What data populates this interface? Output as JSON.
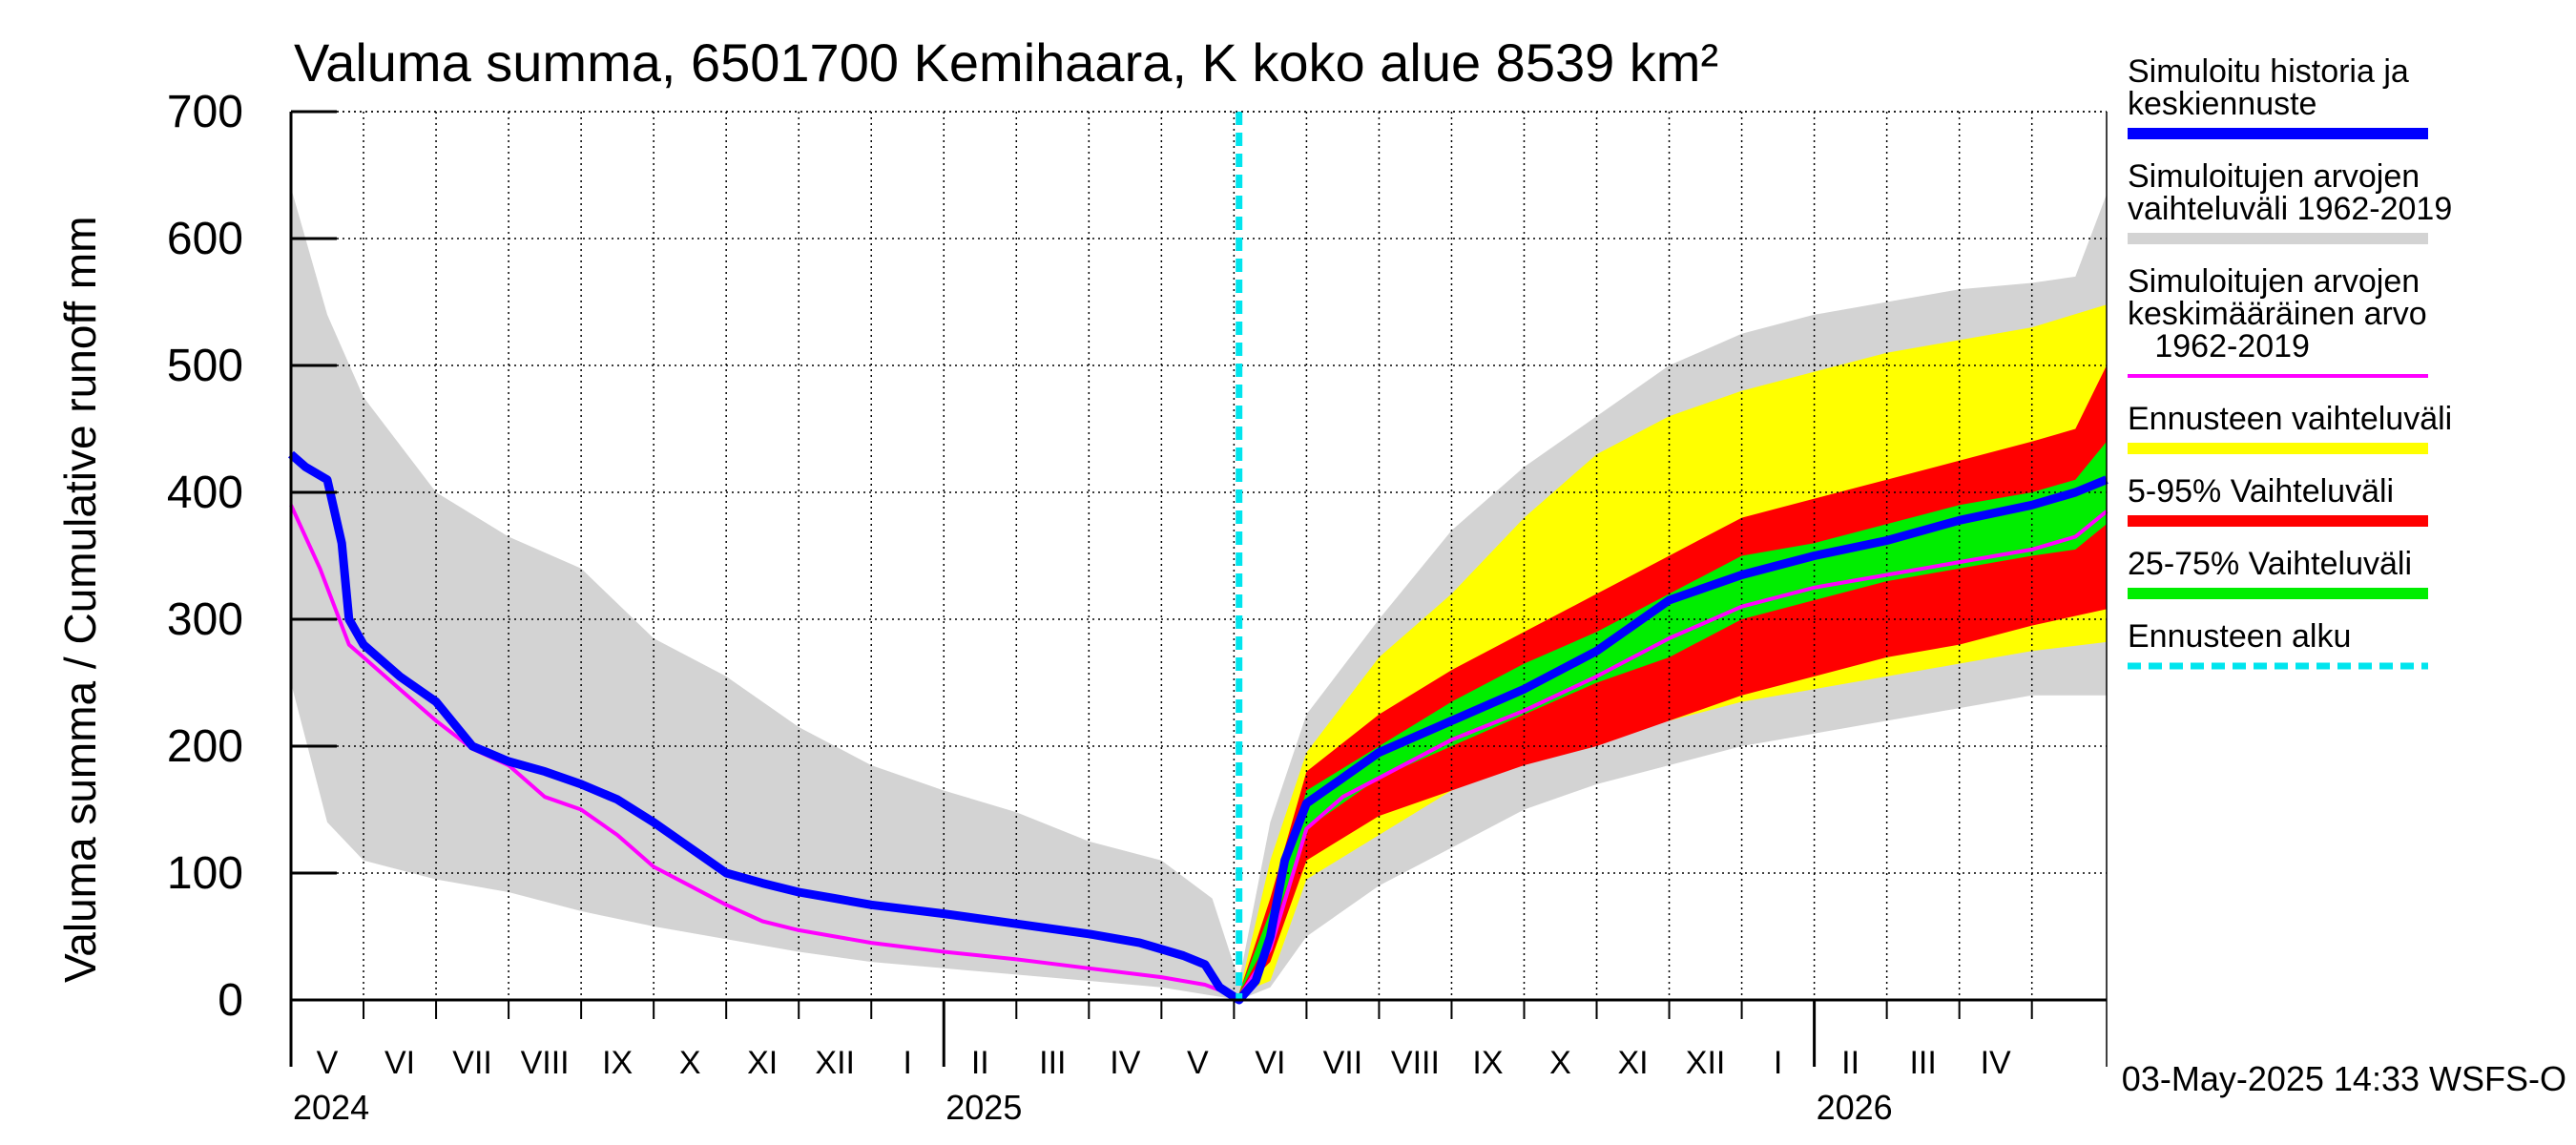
{
  "chart_data": {
    "type": "area",
    "title": "Valuma summa, 6501700 Kemihaara, K koko alue 8539 km²",
    "ylabel": "Valuma summa / Cumulative runoff    mm",
    "xlabel": "",
    "ylim": [
      0,
      700
    ],
    "yticks": [
      0,
      100,
      200,
      300,
      400,
      500,
      600,
      700
    ],
    "x_unit": "months since 2024-04-01",
    "xlim": [
      0,
      25.03
    ],
    "forecast_start": 13.07,
    "month_labels": [
      "V",
      "VI",
      "VII",
      "VIII",
      "IX",
      "X",
      "XI",
      "XII",
      "I",
      "II",
      "III",
      "IV",
      "V",
      "VI",
      "VII",
      "VIII",
      "IX",
      "X",
      "XI",
      "XII",
      "I",
      "II",
      "III",
      "IV"
    ],
    "year_labels": [
      {
        "x": 0,
        "label": "2024"
      },
      {
        "x": 9,
        "label": "2025"
      },
      {
        "x": 21,
        "label": "2026"
      }
    ],
    "grid": true,
    "series": [
      {
        "name": "Simuloitujen arvojen vaihteluväli 1962-2019",
        "color": "#d3d3d3",
        "upper": [
          [
            0,
            640
          ],
          [
            0.5,
            540
          ],
          [
            1,
            475
          ],
          [
            2,
            400
          ],
          [
            3,
            365
          ],
          [
            4,
            340
          ],
          [
            5,
            285
          ],
          [
            6,
            255
          ],
          [
            7,
            215
          ],
          [
            8,
            185
          ],
          [
            9,
            165
          ],
          [
            10,
            148
          ],
          [
            11,
            125
          ],
          [
            12,
            110
          ],
          [
            12.7,
            80
          ],
          [
            13.07,
            15
          ],
          [
            13.5,
            140
          ],
          [
            14,
            225
          ],
          [
            15,
            300
          ],
          [
            16,
            370
          ],
          [
            17,
            420
          ],
          [
            18,
            460
          ],
          [
            19,
            500
          ],
          [
            20,
            525
          ],
          [
            21,
            540
          ],
          [
            22,
            550
          ],
          [
            23,
            560
          ],
          [
            24,
            565
          ],
          [
            24.6,
            570
          ],
          [
            25.03,
            635
          ]
        ],
        "lower": [
          [
            0,
            250
          ],
          [
            0.5,
            140
          ],
          [
            1,
            110
          ],
          [
            2,
            95
          ],
          [
            3,
            85
          ],
          [
            4,
            70
          ],
          [
            5,
            58
          ],
          [
            6,
            48
          ],
          [
            7,
            38
          ],
          [
            8,
            30
          ],
          [
            9,
            25
          ],
          [
            10,
            20
          ],
          [
            11,
            15
          ],
          [
            12,
            10
          ],
          [
            13.07,
            0
          ],
          [
            13.5,
            10
          ],
          [
            14,
            50
          ],
          [
            15,
            90
          ],
          [
            16,
            120
          ],
          [
            17,
            150
          ],
          [
            18,
            170
          ],
          [
            19,
            185
          ],
          [
            20,
            200
          ],
          [
            21,
            210
          ],
          [
            22,
            220
          ],
          [
            23,
            230
          ],
          [
            24,
            240
          ],
          [
            25.03,
            240
          ]
        ]
      },
      {
        "name": "Ennusteen vaihteluväli",
        "color": "#ffff00",
        "upper": [
          [
            13.07,
            5
          ],
          [
            13.5,
            110
          ],
          [
            14,
            195
          ],
          [
            15,
            270
          ],
          [
            16,
            320
          ],
          [
            17,
            380
          ],
          [
            18,
            430
          ],
          [
            19,
            460
          ],
          [
            20,
            480
          ],
          [
            21,
            495
          ],
          [
            22,
            510
          ],
          [
            23,
            520
          ],
          [
            24,
            530
          ],
          [
            25.03,
            548
          ]
        ],
        "lower": [
          [
            13.07,
            5
          ],
          [
            13.5,
            15
          ],
          [
            14,
            95
          ],
          [
            15,
            130
          ],
          [
            16,
            165
          ],
          [
            17,
            190
          ],
          [
            18,
            205
          ],
          [
            19,
            220
          ],
          [
            20,
            235
          ],
          [
            21,
            245
          ],
          [
            22,
            255
          ],
          [
            23,
            265
          ],
          [
            24,
            275
          ],
          [
            25.03,
            282
          ]
        ]
      },
      {
        "name": "5-95% Vaihteluväli",
        "color": "#ff0000",
        "upper": [
          [
            13.07,
            5
          ],
          [
            13.5,
            80
          ],
          [
            14,
            180
          ],
          [
            15,
            225
          ],
          [
            16,
            260
          ],
          [
            17,
            290
          ],
          [
            18,
            320
          ],
          [
            19,
            350
          ],
          [
            20,
            380
          ],
          [
            21,
            395
          ],
          [
            22,
            410
          ],
          [
            23,
            425
          ],
          [
            24,
            440
          ],
          [
            24.6,
            450
          ],
          [
            25.03,
            500
          ]
        ],
        "lower": [
          [
            13.07,
            5
          ],
          [
            13.5,
            30
          ],
          [
            14,
            110
          ],
          [
            15,
            145
          ],
          [
            16,
            165
          ],
          [
            17,
            185
          ],
          [
            18,
            200
          ],
          [
            19,
            220
          ],
          [
            20,
            240
          ],
          [
            21,
            255
          ],
          [
            22,
            270
          ],
          [
            23,
            280
          ],
          [
            24,
            295
          ],
          [
            25.03,
            308
          ]
        ]
      },
      {
        "name": "25-75% Vaihteluväli",
        "color": "#00ee00",
        "upper": [
          [
            13.07,
            5
          ],
          [
            13.5,
            70
          ],
          [
            14,
            165
          ],
          [
            15,
            200
          ],
          [
            16,
            235
          ],
          [
            17,
            265
          ],
          [
            18,
            290
          ],
          [
            19,
            320
          ],
          [
            20,
            350
          ],
          [
            21,
            360
          ],
          [
            22,
            375
          ],
          [
            23,
            390
          ],
          [
            24,
            400
          ],
          [
            24.6,
            410
          ],
          [
            25.03,
            440
          ]
        ],
        "lower": [
          [
            13.07,
            5
          ],
          [
            13.5,
            50
          ],
          [
            14,
            135
          ],
          [
            15,
            175
          ],
          [
            16,
            200
          ],
          [
            17,
            225
          ],
          [
            18,
            250
          ],
          [
            19,
            270
          ],
          [
            20,
            300
          ],
          [
            21,
            315
          ],
          [
            22,
            330
          ],
          [
            23,
            340
          ],
          [
            24,
            350
          ],
          [
            24.6,
            355
          ],
          [
            25.03,
            375
          ]
        ]
      },
      {
        "name": "Simuloitujen arvojen keskimääräinen arvo 1962-2019",
        "color": "#ff00ff",
        "points": [
          [
            0,
            390
          ],
          [
            0.4,
            340
          ],
          [
            0.8,
            280
          ],
          [
            1,
            270
          ],
          [
            1.5,
            245
          ],
          [
            2,
            220
          ],
          [
            2.5,
            198
          ],
          [
            3,
            185
          ],
          [
            3.5,
            160
          ],
          [
            4,
            150
          ],
          [
            4.5,
            130
          ],
          [
            5,
            105
          ],
          [
            5.5,
            90
          ],
          [
            6,
            75
          ],
          [
            6.5,
            62
          ],
          [
            7,
            55
          ],
          [
            8,
            45
          ],
          [
            9,
            38
          ],
          [
            10,
            32
          ],
          [
            11,
            25
          ],
          [
            12,
            18
          ],
          [
            12.6,
            12
          ],
          [
            13.07,
            2
          ],
          [
            13.5,
            40
          ],
          [
            14,
            135
          ],
          [
            14.5,
            160
          ],
          [
            15,
            175
          ],
          [
            16,
            205
          ],
          [
            17,
            228
          ],
          [
            18,
            255
          ],
          [
            19,
            285
          ],
          [
            20,
            310
          ],
          [
            21,
            325
          ],
          [
            22,
            335
          ],
          [
            23,
            345
          ],
          [
            24,
            355
          ],
          [
            24.6,
            365
          ],
          [
            25.03,
            385
          ]
        ]
      },
      {
        "name": "Simuloitu historia ja keskiennuste",
        "color": "#0000ff",
        "points": [
          [
            0,
            430
          ],
          [
            0.2,
            420
          ],
          [
            0.5,
            410
          ],
          [
            0.7,
            360
          ],
          [
            0.8,
            300
          ],
          [
            1,
            280
          ],
          [
            1.5,
            255
          ],
          [
            2,
            235
          ],
          [
            2.5,
            200
          ],
          [
            3,
            188
          ],
          [
            3.5,
            180
          ],
          [
            4,
            170
          ],
          [
            4.5,
            158
          ],
          [
            5,
            140
          ],
          [
            5.5,
            120
          ],
          [
            6,
            100
          ],
          [
            6.5,
            92
          ],
          [
            7,
            85
          ],
          [
            7.5,
            80
          ],
          [
            8,
            75
          ],
          [
            9,
            68
          ],
          [
            10,
            60
          ],
          [
            11,
            52
          ],
          [
            11.7,
            45
          ],
          [
            12.3,
            35
          ],
          [
            12.6,
            28
          ],
          [
            12.8,
            10
          ],
          [
            13.07,
            0
          ],
          [
            13.3,
            15
          ],
          [
            13.5,
            50
          ],
          [
            13.7,
            110
          ],
          [
            14,
            155
          ],
          [
            14.5,
            175
          ],
          [
            15,
            195
          ],
          [
            16,
            220
          ],
          [
            17,
            245
          ],
          [
            18,
            275
          ],
          [
            19,
            315
          ],
          [
            20,
            335
          ],
          [
            21,
            350
          ],
          [
            22,
            362
          ],
          [
            23,
            378
          ],
          [
            24,
            390
          ],
          [
            24.6,
            400
          ],
          [
            25.03,
            410
          ]
        ]
      }
    ],
    "forecast_line": {
      "name": "Ennusteen alku",
      "color": "#00e5ee"
    },
    "legend": [
      {
        "label_lines": [
          "Simuloitu historia ja",
          "keskiennuste"
        ],
        "color": "#0000ff"
      },
      {
        "label_lines": [
          "Simuloitujen arvojen",
          "vaihteluväli 1962-2019"
        ],
        "color": "#d3d3d3"
      },
      {
        "label_lines": [
          "Simuloitujen arvojen",
          "keskimääräinen arvo",
          "   1962-2019"
        ],
        "color": "#ff00ff"
      },
      {
        "label_lines": [
          "Ennusteen vaihteluväli"
        ],
        "color": "#ffff00"
      },
      {
        "label_lines": [
          "5-95% Vaihteluväli"
        ],
        "color": "#ff0000"
      },
      {
        "label_lines": [
          "25-75% Vaihteluväli"
        ],
        "color": "#00ee00"
      },
      {
        "label_lines": [
          "Ennusteen alku"
        ],
        "color": "#00e5ee"
      }
    ],
    "legend_position": "right",
    "footer": "03-May-2025 14:33 WSFS-O"
  }
}
